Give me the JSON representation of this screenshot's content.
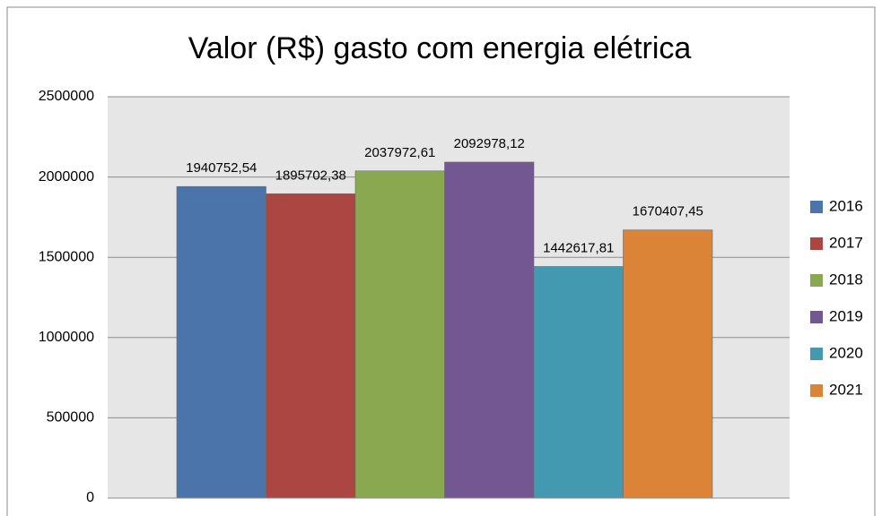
{
  "chart_data": {
    "type": "bar",
    "title": "Valor (R$) gasto com energia elétrica",
    "series": [
      {
        "name": "2016",
        "color": "#4a74aa",
        "values": [
          1940752.54
        ],
        "value_labels": [
          "1940752,54"
        ]
      },
      {
        "name": "2017",
        "color": "#ac4643",
        "values": [
          1895702.38
        ],
        "value_labels": [
          "1895702,38"
        ]
      },
      {
        "name": "2018",
        "color": "#8aa84f",
        "values": [
          2037972.61
        ],
        "value_labels": [
          "2037972,61"
        ]
      },
      {
        "name": "2019",
        "color": "#735793",
        "values": [
          2092978.12
        ],
        "value_labels": [
          "2092978,12"
        ]
      },
      {
        "name": "2020",
        "color": "#4299b0",
        "values": [
          1442617.81
        ],
        "value_labels": [
          "1442617,81"
        ]
      },
      {
        "name": "2021",
        "color": "#db8438",
        "values": [
          1670407.45
        ],
        "value_labels": [
          "1670407,45"
        ]
      }
    ],
    "ylim": [
      0,
      2500000
    ],
    "yticks": [
      0,
      500000,
      1000000,
      1500000,
      2000000,
      2500000
    ],
    "grid": true,
    "legend": "right"
  }
}
